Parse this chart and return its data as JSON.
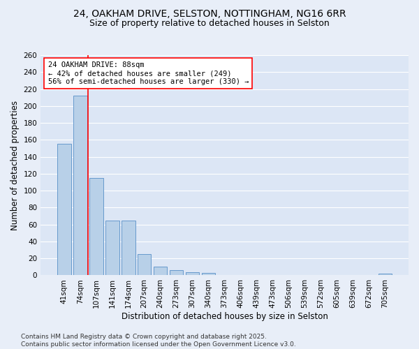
{
  "title1": "24, OAKHAM DRIVE, SELSTON, NOTTINGHAM, NG16 6RR",
  "title2": "Size of property relative to detached houses in Selston",
  "xlabel": "Distribution of detached houses by size in Selston",
  "ylabel": "Number of detached properties",
  "categories": [
    "41sqm",
    "74sqm",
    "107sqm",
    "141sqm",
    "174sqm",
    "207sqm",
    "240sqm",
    "273sqm",
    "307sqm",
    "340sqm",
    "373sqm",
    "406sqm",
    "439sqm",
    "473sqm",
    "506sqm",
    "539sqm",
    "572sqm",
    "605sqm",
    "639sqm",
    "672sqm",
    "705sqm"
  ],
  "values": [
    155,
    212,
    115,
    65,
    65,
    25,
    10,
    6,
    4,
    3,
    0,
    0,
    0,
    0,
    0,
    0,
    0,
    0,
    0,
    0,
    2
  ],
  "bar_color": "#b8d0e8",
  "bar_edge_color": "#6699cc",
  "vline_x": 1.5,
  "vline_color": "red",
  "annotation_text": "24 OAKHAM DRIVE: 88sqm\n← 42% of detached houses are smaller (249)\n56% of semi-detached houses are larger (330) →",
  "annotation_box_color": "white",
  "annotation_box_edge": "red",
  "ylim": [
    0,
    260
  ],
  "yticks": [
    0,
    20,
    40,
    60,
    80,
    100,
    120,
    140,
    160,
    180,
    200,
    220,
    240,
    260
  ],
  "footer": "Contains HM Land Registry data © Crown copyright and database right 2025.\nContains public sector information licensed under the Open Government Licence v3.0.",
  "bg_color": "#e8eef8",
  "plot_bg_color": "#dce6f5",
  "title_fontsize": 10,
  "subtitle_fontsize": 9,
  "axis_label_fontsize": 8.5,
  "tick_fontsize": 7.5,
  "footer_fontsize": 6.5,
  "annot_fontsize": 7.5
}
